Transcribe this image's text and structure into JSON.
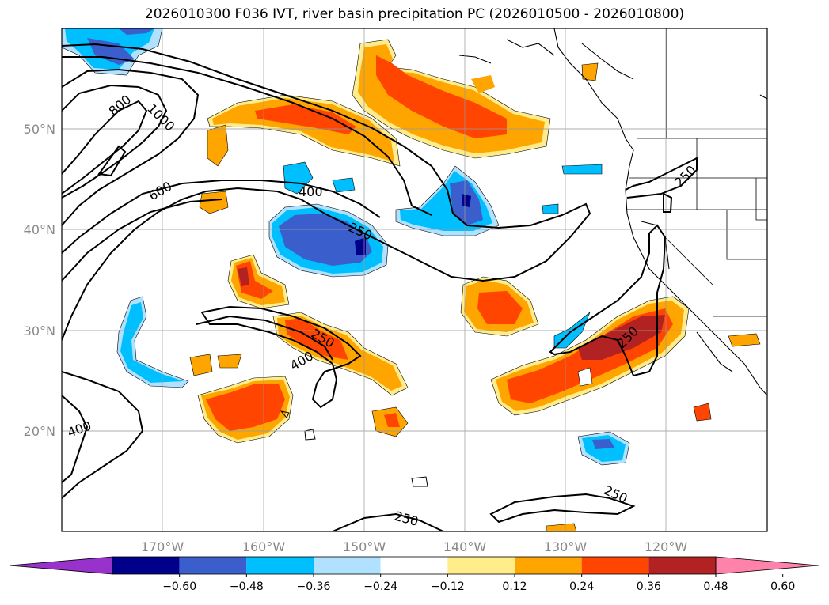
{
  "title": "2026010300 F036 IVT, river basin precipitation PC (2026010500 - 2026010800)",
  "lat_labels": [
    "50°N",
    "40°N",
    "30°N",
    "20°N"
  ],
  "lon_labels": [
    "170°W",
    "160°W",
    "150°W",
    "140°W",
    "130°W",
    "120°W"
  ],
  "contour_labels": [
    "800",
    "1000",
    "600",
    "400",
    "250",
    "250",
    "250",
    "400",
    "250",
    "250",
    "250",
    "400"
  ],
  "colorbar": {
    "colors": [
      "#9932cc",
      "#00008b",
      "#3a5fcd",
      "#00bfff",
      "#b0e2ff",
      "#ffffff",
      "#ffec8b",
      "#ffa500",
      "#ff4500",
      "#b22222",
      "#ff82ab"
    ],
    "tick_labels": [
      "−0.60",
      "−0.48",
      "−0.36",
      "−0.24",
      "−0.12",
      "0.12",
      "0.24",
      "0.36",
      "0.48",
      "0.60"
    ]
  },
  "chart_data": {
    "type": "map",
    "title": "2026010300 F036 IVT, river basin precipitation PC (2026010500 - 2026010800)",
    "lat_ticks": [
      50,
      40,
      30,
      20
    ],
    "lon_ticks": [
      -170,
      -160,
      -150,
      -140,
      -130,
      -120
    ],
    "ivt_contour_levels": [
      250,
      400,
      600,
      800,
      1000
    ],
    "pc_levels": [
      -0.6,
      -0.48,
      -0.36,
      -0.24,
      -0.12,
      0.12,
      0.24,
      0.36,
      0.48,
      0.6
    ],
    "grid": true,
    "colorbar_position": "bottom"
  }
}
